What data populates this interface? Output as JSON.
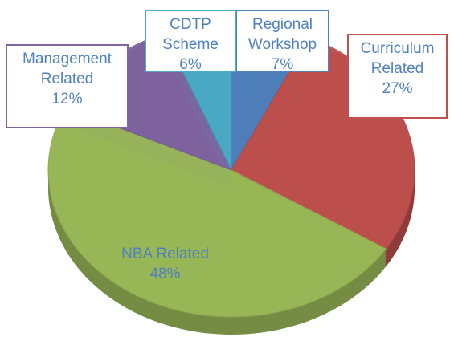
{
  "chart_data": {
    "type": "pie",
    "categories": [
      "Regional Workshop",
      "Curriculum Related",
      "NBA Related",
      "Management Related",
      "CDTP Scheme"
    ],
    "values": [
      7,
      27,
      48,
      12,
      6
    ],
    "value_labels": [
      "7%",
      "27%",
      "48%",
      "12%",
      "6%"
    ],
    "colors": [
      "#4f81bd",
      "#c0504d",
      "#9bbb59",
      "#8064a2",
      "#4bacc6"
    ]
  }
}
